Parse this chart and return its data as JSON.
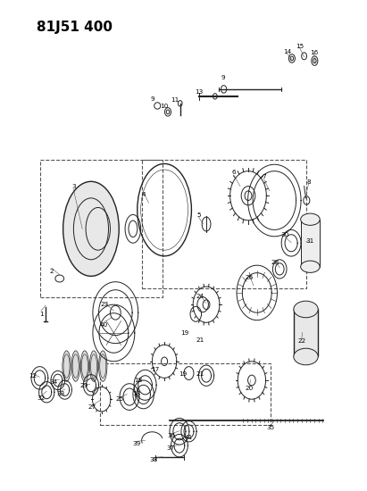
{
  "title": "81J51 400",
  "bg_color": "#ffffff",
  "line_color": "#222222",
  "label_color": "#000000",
  "title_fontsize": 11
}
